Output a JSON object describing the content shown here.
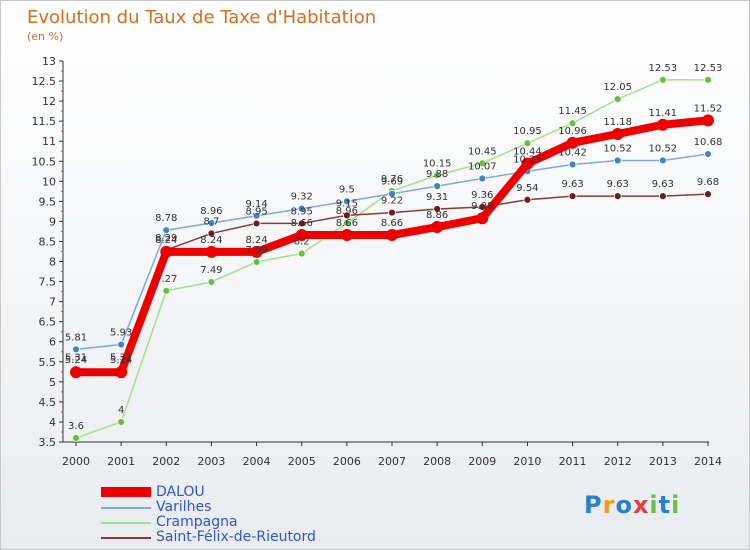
{
  "title": "Evolution du Taux de Taxe d'Habitation",
  "unit_label": "(en %)",
  "logo": {
    "letters": [
      "P",
      "r",
      "o",
      "x",
      "i",
      "t",
      "i"
    ],
    "colors": [
      "#2a7fd4",
      "#f29a1a",
      "#2a7fd4",
      "#e83c3c",
      "#6cc04a",
      "#2a7fd4",
      "#6cc04a"
    ]
  },
  "chart_data": {
    "type": "line",
    "x": [
      "2000",
      "2001",
      "2002",
      "2003",
      "2004",
      "2005",
      "2006",
      "2007",
      "2008",
      "2009",
      "2010",
      "2011",
      "2012",
      "2013",
      "2014"
    ],
    "ylim": [
      3.5,
      13
    ],
    "yticks": [
      "3.5",
      "4",
      "4.5",
      "5",
      "5.5",
      "6",
      "6.5",
      "7",
      "7.5",
      "8",
      "8.5",
      "9",
      "9.5",
      "10",
      "10.5",
      "11",
      "11.5",
      "12",
      "12.5",
      "13"
    ],
    "grid": false,
    "legend_position": "bottom-left",
    "series": [
      {
        "name": "DALOU",
        "color": "#ee0000",
        "width": 8,
        "marker": 6,
        "values": [
          5.24,
          5.24,
          8.24,
          8.24,
          8.24,
          8.66,
          8.66,
          8.66,
          8.86,
          9.08,
          10.44,
          10.96,
          11.18,
          11.41,
          11.52
        ],
        "labels": [
          "5.24",
          "5.24",
          "8.24",
          "8.24",
          "8.24",
          "8.66",
          "8.66",
          "8.66",
          "8.86",
          "9.08",
          "10.44",
          "10.96",
          "11.18",
          "11.41",
          "11.52"
        ]
      },
      {
        "name": "Varilhes",
        "color": "#7aabdc",
        "width": 1.5,
        "marker": 3.5,
        "marker_color": "#3f84c7",
        "values": [
          5.81,
          5.93,
          8.78,
          8.96,
          9.14,
          9.32,
          9.5,
          9.69,
          9.88,
          10.07,
          10.25,
          10.42,
          10.52,
          10.52,
          10.68
        ],
        "labels": [
          "5.81",
          "5.93",
          "8.78",
          "8.96",
          "9.14",
          "9.32",
          "9.5",
          "9.69",
          "9.88",
          "10.07",
          "10.25",
          "10.42",
          "10.52",
          "10.52",
          "10.68"
        ]
      },
      {
        "name": "Crampagna",
        "color": "#a6e08a",
        "width": 1.5,
        "marker": 3.5,
        "marker_color": "#66c23c",
        "values": [
          3.6,
          4,
          7.27,
          7.49,
          7.99,
          8.2,
          8.96,
          9.76,
          10.15,
          10.45,
          10.95,
          11.45,
          12.05,
          12.53,
          12.53
        ],
        "labels": [
          "3.6",
          "4",
          "7.27",
          "7.49",
          "7.99",
          "8.2",
          "8.96",
          "9.76",
          "10.15",
          "10.45",
          "10.95",
          "11.45",
          "12.05",
          "12.53",
          "12.53"
        ]
      },
      {
        "name": "Saint-Félix-de-Rieutord",
        "color": "#8b3a3a",
        "width": 1.5,
        "marker": 3.5,
        "marker_color": "#6e1c1c",
        "values": [
          5.31,
          5.31,
          8.29,
          8.7,
          8.95,
          8.95,
          9.15,
          9.22,
          9.31,
          9.36,
          9.54,
          9.63,
          9.63,
          9.63,
          9.68
        ],
        "labels": [
          "5.31",
          "5.31",
          "8.29",
          "8.7",
          "8.95",
          "8.95",
          "9.15",
          "9.22",
          "9.31",
          "9.36",
          "9.54",
          "9.63",
          "9.63",
          "9.63",
          "9.68"
        ]
      }
    ]
  }
}
